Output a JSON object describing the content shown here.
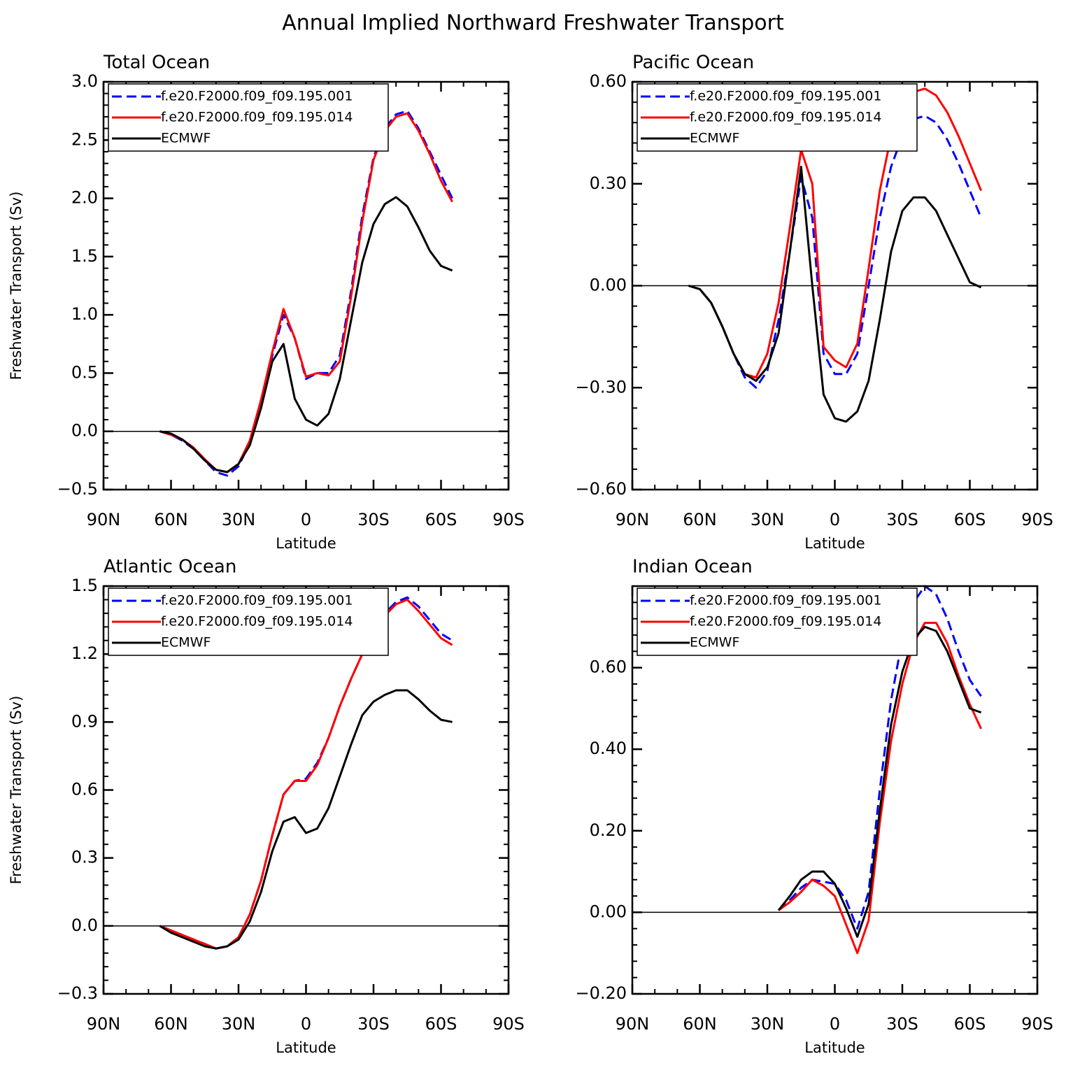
{
  "title": "Annual Implied Northward Freshwater Transport",
  "chart_data": [
    {
      "type": "line",
      "title": "Total Ocean",
      "xlabel": "Latitude",
      "ylabel": "Freshwater Transport (Sv)",
      "xlim": [
        90,
        -90
      ],
      "ylim": [
        -0.5,
        3.0
      ],
      "xticks": [
        {
          "value": 90,
          "label": "90N"
        },
        {
          "value": 60,
          "label": "60N"
        },
        {
          "value": 30,
          "label": "30N"
        },
        0,
        {
          "value": -30,
          "label": "30S"
        },
        {
          "value": -60,
          "label": "60S"
        },
        {
          "value": -90,
          "label": "90S"
        }
      ],
      "yticks": [
        {
          "value": 3.0,
          "label": "3.0"
        },
        2.5,
        {
          "value": 2.0,
          "label": "2.0"
        },
        1.5,
        {
          "value": 1.0,
          "label": "1.0"
        },
        0.5,
        {
          "value": 0.0,
          "label": "0.0"
        },
        {
          "value": -0.5,
          "label": "−0.5"
        }
      ],
      "zero_line": true,
      "legend": "upper left",
      "x": [
        65,
        60,
        55,
        50,
        45,
        40,
        35,
        30,
        25,
        20,
        15,
        10,
        5,
        0,
        -5,
        -10,
        -15,
        -20,
        -25,
        -30,
        -35,
        -40,
        -45,
        -50,
        -55,
        -60,
        -65
      ],
      "series": [
        {
          "name": "f.e20.F2000.f09_f09.195.001",
          "color": "#0000ff",
          "linestyle": "dashed",
          "values": [
            0,
            -0.03,
            -0.08,
            -0.15,
            -0.25,
            -0.35,
            -0.38,
            -0.3,
            -0.1,
            0.25,
            0.65,
            1.0,
            0.8,
            0.45,
            0.5,
            0.5,
            0.65,
            1.2,
            1.85,
            2.35,
            2.6,
            2.72,
            2.75,
            2.6,
            2.4,
            2.2,
            2.0
          ]
        },
        {
          "name": "f.e20.F2000.f09_f09.195.014",
          "color": "#ff0000",
          "linestyle": "solid",
          "values": [
            0,
            -0.03,
            -0.07,
            -0.14,
            -0.24,
            -0.33,
            -0.35,
            -0.28,
            -0.08,
            0.27,
            0.68,
            1.05,
            0.8,
            0.47,
            0.5,
            0.48,
            0.6,
            1.15,
            1.8,
            2.33,
            2.58,
            2.7,
            2.73,
            2.58,
            2.38,
            2.15,
            1.97
          ]
        },
        {
          "name": "ECMWF",
          "color": "#000000",
          "linestyle": "solid",
          "values": [
            0,
            -0.02,
            -0.07,
            -0.15,
            -0.25,
            -0.33,
            -0.35,
            -0.28,
            -0.12,
            0.2,
            0.6,
            0.75,
            0.28,
            0.1,
            0.05,
            0.15,
            0.45,
            0.95,
            1.45,
            1.78,
            1.95,
            2.01,
            1.93,
            1.75,
            1.55,
            1.42,
            1.38
          ]
        }
      ]
    },
    {
      "type": "line",
      "title": "Pacific Ocean",
      "xlabel": "Latitude",
      "xlim": [
        90,
        -90
      ],
      "ylim": [
        -0.6,
        0.6
      ],
      "xticks": [
        {
          "value": 90,
          "label": "90N"
        },
        {
          "value": 60,
          "label": "60N"
        },
        {
          "value": 30,
          "label": "30N"
        },
        0,
        {
          "value": -30,
          "label": "30S"
        },
        {
          "value": -60,
          "label": "60S"
        },
        {
          "value": -90,
          "label": "90S"
        }
      ],
      "yticks": [
        {
          "value": 0.6,
          "label": "0.60"
        },
        {
          "value": 0.3,
          "label": "0.30"
        },
        {
          "value": 0.0,
          "label": "0.00"
        },
        {
          "value": -0.3,
          "label": "−0.30"
        },
        {
          "value": -0.6,
          "label": "−0.60"
        }
      ],
      "zero_line": true,
      "legend": "upper left",
      "x": [
        65,
        60,
        55,
        50,
        45,
        40,
        35,
        30,
        25,
        20,
        15,
        10,
        5,
        0,
        -5,
        -10,
        -15,
        -20,
        -25,
        -30,
        -35,
        -40,
        -45,
        -50,
        -55,
        -60,
        -65
      ],
      "series": [
        {
          "name": "f.e20.F2000.f09_f09.195.001",
          "color": "#0000ff",
          "linestyle": "dashed",
          "values": [
            0,
            -0.01,
            -0.05,
            -0.12,
            -0.2,
            -0.27,
            -0.3,
            -0.25,
            -0.1,
            0.1,
            0.32,
            0.2,
            -0.2,
            -0.26,
            -0.26,
            -0.2,
            0.0,
            0.2,
            0.35,
            0.44,
            0.49,
            0.5,
            0.48,
            0.43,
            0.36,
            0.28,
            0.2
          ]
        },
        {
          "name": "f.e20.F2000.f09_f09.195.014",
          "color": "#ff0000",
          "linestyle": "solid",
          "values": [
            0,
            -0.01,
            -0.05,
            -0.12,
            -0.2,
            -0.26,
            -0.27,
            -0.2,
            -0.05,
            0.17,
            0.4,
            0.3,
            -0.18,
            -0.22,
            -0.24,
            -0.17,
            0.05,
            0.28,
            0.44,
            0.53,
            0.57,
            0.58,
            0.56,
            0.51,
            0.44,
            0.36,
            0.28
          ]
        },
        {
          "name": "ECMWF",
          "color": "#000000",
          "linestyle": "solid",
          "values": [
            0,
            -0.01,
            -0.05,
            -0.12,
            -0.2,
            -0.26,
            -0.28,
            -0.24,
            -0.14,
            0.1,
            0.35,
            0.0,
            -0.32,
            -0.39,
            -0.4,
            -0.37,
            -0.28,
            -0.1,
            0.1,
            0.22,
            0.26,
            0.26,
            0.22,
            0.15,
            0.08,
            0.01,
            -0.005
          ]
        }
      ]
    },
    {
      "type": "line",
      "title": "Atlantic Ocean",
      "xlabel": "Latitude",
      "ylabel": "Freshwater Transport (Sv)",
      "xlim": [
        90,
        -90
      ],
      "ylim": [
        -0.3,
        1.5
      ],
      "xticks": [
        {
          "value": 90,
          "label": "90N"
        },
        {
          "value": 60,
          "label": "60N"
        },
        {
          "value": 30,
          "label": "30N"
        },
        0,
        {
          "value": -30,
          "label": "30S"
        },
        {
          "value": -60,
          "label": "60S"
        },
        {
          "value": -90,
          "label": "90S"
        }
      ],
      "yticks": [
        1.5,
        1.2,
        0.9,
        0.6,
        0.3,
        {
          "value": 0.0,
          "label": "0.0"
        },
        {
          "value": -0.3,
          "label": "−0.3"
        }
      ],
      "zero_line": true,
      "legend": "upper left",
      "x": [
        65,
        60,
        55,
        50,
        45,
        40,
        35,
        30,
        25,
        20,
        15,
        10,
        5,
        0,
        -5,
        -10,
        -15,
        -20,
        -25,
        -30,
        -35,
        -40,
        -45,
        -50,
        -55,
        -60,
        -65
      ],
      "series": [
        {
          "name": "f.e20.F2000.f09_f09.195.001",
          "color": "#0000ff",
          "linestyle": "dashed",
          "values": [
            0,
            -0.02,
            -0.04,
            -0.06,
            -0.08,
            -0.1,
            -0.09,
            -0.05,
            0.05,
            0.2,
            0.4,
            0.58,
            0.64,
            0.65,
            0.72,
            0.83,
            0.97,
            1.09,
            1.2,
            1.3,
            1.38,
            1.43,
            1.45,
            1.41,
            1.35,
            1.29,
            1.26
          ]
        },
        {
          "name": "f.e20.F2000.f09_f09.195.014",
          "color": "#ff0000",
          "linestyle": "solid",
          "values": [
            0,
            -0.02,
            -0.04,
            -0.06,
            -0.08,
            -0.1,
            -0.09,
            -0.05,
            0.05,
            0.2,
            0.4,
            0.58,
            0.64,
            0.64,
            0.71,
            0.83,
            0.97,
            1.09,
            1.2,
            1.3,
            1.37,
            1.42,
            1.44,
            1.39,
            1.33,
            1.27,
            1.24
          ]
        },
        {
          "name": "ECMWF",
          "color": "#000000",
          "linestyle": "solid",
          "values": [
            0,
            -0.03,
            -0.05,
            -0.07,
            -0.09,
            -0.1,
            -0.09,
            -0.06,
            0.02,
            0.15,
            0.33,
            0.46,
            0.48,
            0.41,
            0.43,
            0.52,
            0.66,
            0.8,
            0.93,
            0.99,
            1.02,
            1.04,
            1.04,
            1.0,
            0.95,
            0.91,
            0.9
          ]
        }
      ]
    },
    {
      "type": "line",
      "title": "Indian Ocean",
      "xlabel": "Latitude",
      "xlim": [
        90,
        -90
      ],
      "ylim": [
        -0.2,
        0.8
      ],
      "xticks": [
        {
          "value": 90,
          "label": "90N"
        },
        {
          "value": 60,
          "label": "60N"
        },
        {
          "value": 30,
          "label": "30N"
        },
        0,
        {
          "value": -30,
          "label": "30S"
        },
        {
          "value": -60,
          "label": "60S"
        },
        {
          "value": -90,
          "label": "90S"
        }
      ],
      "yticks": [
        {
          "value": 0.6,
          "label": "0.60"
        },
        {
          "value": 0.4,
          "label": "0.40"
        },
        {
          "value": 0.2,
          "label": "0.20"
        },
        {
          "value": 0.0,
          "label": "0.00"
        },
        {
          "value": -0.2,
          "label": "−0.20"
        }
      ],
      "zero_line": true,
      "legend": "upper left",
      "x": [
        25,
        20,
        15,
        10,
        5,
        0,
        -5,
        -10,
        -15,
        -20,
        -25,
        -30,
        -35,
        -40,
        -45,
        -50,
        -55,
        -60,
        -65
      ],
      "series": [
        {
          "name": "f.e20.F2000.f09_f09.195.001",
          "color": "#0000ff",
          "linestyle": "dashed",
          "values": [
            0.005,
            0.03,
            0.06,
            0.08,
            0.075,
            0.07,
            0.03,
            -0.04,
            0.05,
            0.3,
            0.52,
            0.67,
            0.76,
            0.8,
            0.78,
            0.72,
            0.64,
            0.57,
            0.53
          ]
        },
        {
          "name": "f.e20.F2000.f09_f09.195.014",
          "color": "#ff0000",
          "linestyle": "solid",
          "values": [
            0.005,
            0.025,
            0.05,
            0.08,
            0.065,
            0.04,
            -0.03,
            -0.1,
            -0.02,
            0.22,
            0.42,
            0.56,
            0.66,
            0.71,
            0.71,
            0.66,
            0.58,
            0.51,
            0.45
          ]
        },
        {
          "name": "ECMWF",
          "color": "#000000",
          "linestyle": "solid",
          "values": [
            0.005,
            0.04,
            0.08,
            0.1,
            0.1,
            0.07,
            0.01,
            -0.06,
            0.02,
            0.25,
            0.46,
            0.59,
            0.67,
            0.7,
            0.69,
            0.64,
            0.57,
            0.5,
            0.49
          ]
        }
      ]
    }
  ]
}
